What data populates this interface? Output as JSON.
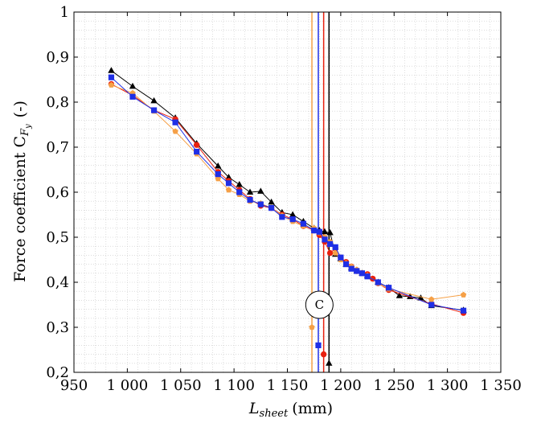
{
  "chart_data": {
    "type": "line",
    "xlabel_main": "L",
    "xlabel_sub": "sheet",
    "xlabel_unit": "(mm)",
    "ylabel_main": "Force coefficient C",
    "ylabel_sub1": "F",
    "ylabel_sub2": "y",
    "ylabel_unit": "(-)",
    "xlim": [
      950,
      1350
    ],
    "ylim": [
      0.2,
      1.0
    ],
    "xticks": [
      950,
      1000,
      1050,
      1100,
      1150,
      1200,
      1250,
      1300,
      1350
    ],
    "xtick_labels": [
      "950",
      "1 000",
      "1 050",
      "1 100",
      "1 150",
      "1 200",
      "1 250",
      "1 300",
      "1 350"
    ],
    "yticks": [
      0.2,
      0.3,
      0.4,
      0.5,
      0.6,
      0.7,
      0.8,
      0.9,
      1.0
    ],
    "ytick_labels": [
      "0,2",
      "0,3",
      "0,4",
      "0,5",
      "0,6",
      "0,7",
      "0,8",
      "0,9",
      "1"
    ],
    "grid": true,
    "series": [
      {
        "color": "#000000",
        "marker": "triangle",
        "points": [
          [
            985,
            0.87
          ],
          [
            1005,
            0.835
          ],
          [
            1025,
            0.803
          ],
          [
            1045,
            0.765
          ],
          [
            1065,
            0.708
          ],
          [
            1085,
            0.658
          ],
          [
            1095,
            0.633
          ],
          [
            1105,
            0.617
          ],
          [
            1115,
            0.6
          ],
          [
            1125,
            0.602
          ],
          [
            1135,
            0.578
          ],
          [
            1145,
            0.555
          ],
          [
            1155,
            0.55
          ],
          [
            1165,
            0.535
          ],
          [
            1175,
            0.52
          ],
          [
            1180,
            0.515
          ],
          [
            1185,
            0.512
          ],
          [
            1190,
            0.51
          ],
          [
            1195,
            0.462
          ],
          [
            1200,
            0.452
          ],
          [
            1205,
            0.44
          ],
          [
            1210,
            0.432
          ],
          [
            1215,
            0.425
          ],
          [
            1220,
            0.42
          ],
          [
            1225,
            0.415
          ],
          [
            1235,
            0.4
          ],
          [
            1245,
            0.388
          ],
          [
            1255,
            0.37
          ],
          [
            1265,
            0.368
          ],
          [
            1275,
            0.365
          ],
          [
            1285,
            0.348
          ],
          [
            1315,
            0.338
          ]
        ]
      },
      {
        "color": "#e8200f",
        "marker": "circle",
        "points": [
          [
            985,
            0.84
          ],
          [
            1005,
            0.815
          ],
          [
            1025,
            0.782
          ],
          [
            1045,
            0.762
          ],
          [
            1065,
            0.705
          ],
          [
            1085,
            0.645
          ],
          [
            1095,
            0.625
          ],
          [
            1105,
            0.605
          ],
          [
            1115,
            0.585
          ],
          [
            1125,
            0.57
          ],
          [
            1135,
            0.565
          ],
          [
            1145,
            0.55
          ],
          [
            1155,
            0.54
          ],
          [
            1165,
            0.525
          ],
          [
            1175,
            0.515
          ],
          [
            1180,
            0.505
          ],
          [
            1185,
            0.49
          ],
          [
            1190,
            0.465
          ],
          [
            1195,
            0.475
          ],
          [
            1200,
            0.455
          ],
          [
            1205,
            0.445
          ],
          [
            1210,
            0.435
          ],
          [
            1215,
            0.425
          ],
          [
            1220,
            0.42
          ],
          [
            1225,
            0.418
          ],
          [
            1230,
            0.408
          ],
          [
            1235,
            0.398
          ],
          [
            1245,
            0.383
          ],
          [
            1285,
            0.352
          ],
          [
            1315,
            0.332
          ]
        ]
      },
      {
        "color": "#f5a047",
        "marker": "pentagon",
        "points": [
          [
            985,
            0.838
          ],
          [
            1005,
            0.82
          ],
          [
            1025,
            0.78
          ],
          [
            1045,
            0.735
          ],
          [
            1065,
            0.685
          ],
          [
            1085,
            0.63
          ],
          [
            1095,
            0.605
          ],
          [
            1105,
            0.595
          ],
          [
            1115,
            0.58
          ],
          [
            1125,
            0.575
          ],
          [
            1135,
            0.565
          ],
          [
            1145,
            0.548
          ],
          [
            1155,
            0.535
          ],
          [
            1165,
            0.525
          ],
          [
            1175,
            0.52
          ],
          [
            1180,
            0.51
          ],
          [
            1185,
            0.5
          ],
          [
            1190,
            0.49
          ],
          [
            1195,
            0.465
          ],
          [
            1200,
            0.45
          ],
          [
            1205,
            0.442
          ],
          [
            1210,
            0.435
          ],
          [
            1215,
            0.428
          ],
          [
            1220,
            0.42
          ],
          [
            1225,
            0.415
          ],
          [
            1235,
            0.398
          ],
          [
            1245,
            0.385
          ],
          [
            1285,
            0.362
          ],
          [
            1315,
            0.372
          ]
        ]
      },
      {
        "color": "#1f2fe6",
        "marker": "square",
        "points": [
          [
            985,
            0.855
          ],
          [
            1005,
            0.812
          ],
          [
            1025,
            0.782
          ],
          [
            1045,
            0.755
          ],
          [
            1065,
            0.69
          ],
          [
            1085,
            0.64
          ],
          [
            1095,
            0.62
          ],
          [
            1105,
            0.6
          ],
          [
            1115,
            0.583
          ],
          [
            1125,
            0.573
          ],
          [
            1135,
            0.565
          ],
          [
            1145,
            0.545
          ],
          [
            1155,
            0.54
          ],
          [
            1165,
            0.53
          ],
          [
            1175,
            0.515
          ],
          [
            1180,
            0.512
          ],
          [
            1185,
            0.495
          ],
          [
            1190,
            0.485
          ],
          [
            1195,
            0.478
          ],
          [
            1200,
            0.455
          ],
          [
            1205,
            0.44
          ],
          [
            1210,
            0.43
          ],
          [
            1215,
            0.425
          ],
          [
            1220,
            0.42
          ],
          [
            1225,
            0.413
          ],
          [
            1235,
            0.4
          ],
          [
            1245,
            0.388
          ],
          [
            1285,
            0.35
          ],
          [
            1315,
            0.337
          ]
        ]
      }
    ],
    "isolated_points": [
      {
        "x": 1173,
        "y": 0.3,
        "color": "#f5a047",
        "marker": "pentagon"
      },
      {
        "x": 1179,
        "y": 0.26,
        "color": "#1f2fe6",
        "marker": "square"
      },
      {
        "x": 1184,
        "y": 0.24,
        "color": "#e8200f",
        "marker": "circle"
      },
      {
        "x": 1189,
        "y": 0.22,
        "color": "#000000",
        "marker": "triangle"
      }
    ],
    "vertical_lines": [
      {
        "x": 1173,
        "color": "#f5a047"
      },
      {
        "x": 1179,
        "color": "#1f2fe6"
      },
      {
        "x": 1184,
        "color": "#e8200f"
      },
      {
        "x": 1189,
        "color": "#000000"
      }
    ],
    "annotation": {
      "label": "C",
      "x": 1180,
      "y": 0.35
    }
  }
}
